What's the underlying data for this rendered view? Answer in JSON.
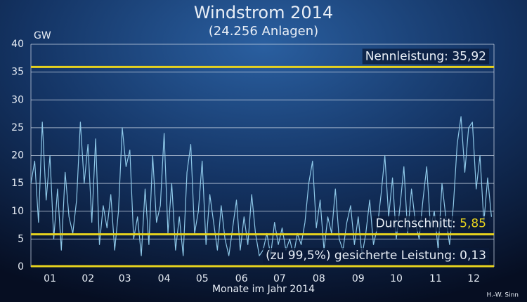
{
  "chart_data": {
    "type": "line",
    "title": "Windstrom 2014",
    "subtitle": "(24.256 Anlagen)",
    "y_label": "GW",
    "x_label": "Monate im Jahr 2014",
    "credit": "H.-W. Sinn",
    "xlim": [
      0,
      365
    ],
    "xticks": [
      {
        "value": 15,
        "label": "01"
      },
      {
        "value": 45,
        "label": "02"
      },
      {
        "value": 74,
        "label": "03"
      },
      {
        "value": 105,
        "label": "04"
      },
      {
        "value": 135,
        "label": "05"
      },
      {
        "value": 166,
        "label": "06"
      },
      {
        "value": 196,
        "label": "07"
      },
      {
        "value": 227,
        "label": "08"
      },
      {
        "value": 258,
        "label": "09"
      },
      {
        "value": 288,
        "label": "10"
      },
      {
        "value": 319,
        "label": "11"
      },
      {
        "value": 349,
        "label": "12"
      }
    ],
    "ylim": [
      0,
      40
    ],
    "yticks": [
      0,
      5,
      10,
      15,
      20,
      25,
      30,
      35,
      40
    ],
    "grid": true,
    "x": [
      0,
      3,
      6,
      9,
      12,
      15,
      18,
      21,
      24,
      27,
      30,
      33,
      36,
      39,
      42,
      45,
      48,
      51,
      54,
      57,
      60,
      63,
      66,
      69,
      72,
      75,
      78,
      81,
      84,
      87,
      90,
      93,
      96,
      99,
      102,
      105,
      108,
      111,
      114,
      117,
      120,
      123,
      126,
      129,
      132,
      135,
      138,
      141,
      144,
      147,
      150,
      153,
      156,
      159,
      162,
      165,
      168,
      171,
      174,
      177,
      180,
      183,
      186,
      189,
      192,
      195,
      198,
      201,
      204,
      207,
      210,
      213,
      216,
      219,
      222,
      225,
      228,
      231,
      234,
      237,
      240,
      243,
      246,
      249,
      252,
      255,
      258,
      261,
      264,
      267,
      270,
      273,
      276,
      279,
      282,
      285,
      288,
      291,
      294,
      297,
      300,
      303,
      306,
      309,
      312,
      315,
      318,
      321,
      324,
      327,
      330,
      333,
      336,
      339,
      342,
      345,
      348,
      351,
      354,
      357,
      360,
      363
    ],
    "series": [
      {
        "name": "Windstrom",
        "color": "#8ec8e8",
        "values": [
          15,
          19,
          8,
          26,
          12,
          20,
          5,
          14,
          3,
          17,
          9,
          6,
          12,
          26,
          15,
          22,
          8,
          23,
          4,
          11,
          7,
          13,
          3,
          10,
          25,
          18,
          21,
          5,
          9,
          2,
          14,
          4,
          20,
          8,
          11,
          24,
          6,
          15,
          3,
          9,
          2,
          17,
          22,
          6,
          10,
          19,
          4,
          13,
          8,
          3,
          11,
          5,
          2,
          7,
          12,
          3,
          9,
          4,
          13,
          6,
          2,
          3,
          6,
          2,
          8,
          4,
          7,
          3,
          5,
          2,
          6,
          4,
          8,
          15,
          19,
          7,
          12,
          3,
          9,
          6,
          14,
          5,
          3,
          8,
          11,
          4,
          9,
          2,
          6,
          12,
          4,
          7,
          13,
          20,
          9,
          16,
          5,
          11,
          18,
          6,
          14,
          8,
          5,
          12,
          18,
          7,
          10,
          3,
          15,
          9,
          4,
          11,
          22,
          27,
          17,
          25,
          26,
          14,
          20,
          8,
          16,
          9
        ]
      }
    ],
    "reference_lines": [
      {
        "name": "Nennleistung:",
        "value": 35.92,
        "value_label": "35,92",
        "color": "#e6d21e"
      },
      {
        "name": "Durchschnitt:",
        "value": 5.85,
        "value_label": "5,85",
        "color": "#e6d21e"
      },
      {
        "name": "(zu 99,5%) gesicherte Leistung:",
        "value": 0.13,
        "value_label": "0,13",
        "color": "#e6d21e"
      }
    ]
  }
}
